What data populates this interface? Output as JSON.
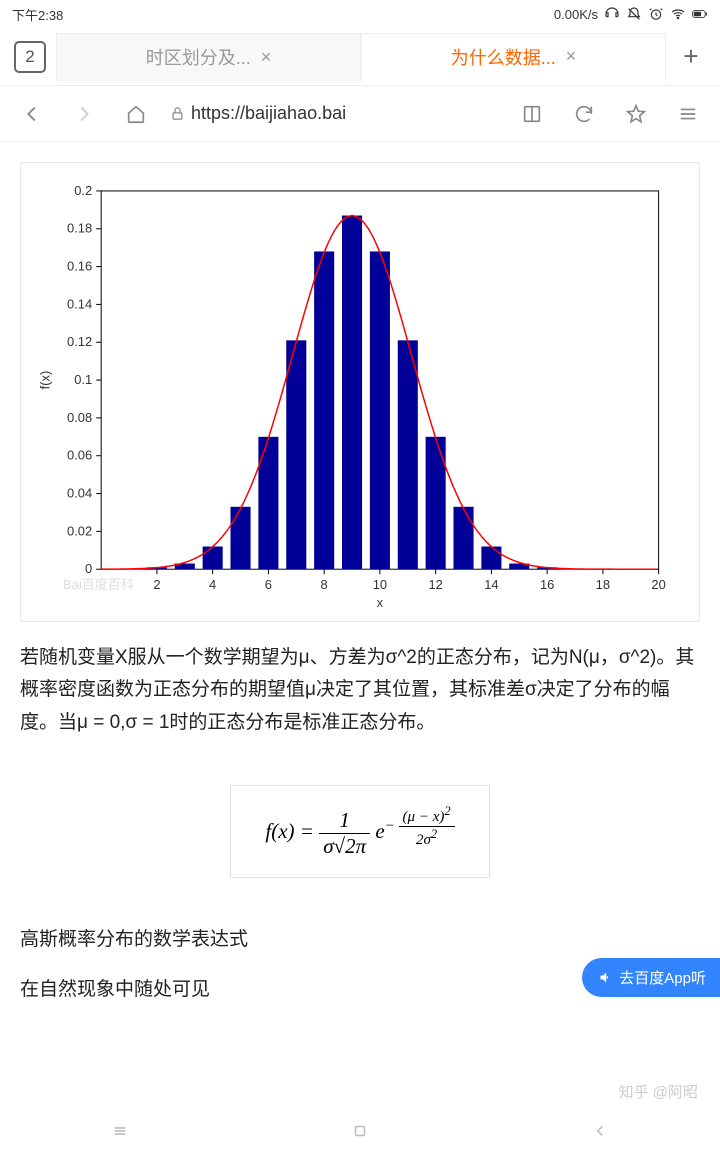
{
  "status": {
    "time": "下午2:38",
    "speed": "0.00K/s"
  },
  "tabs": {
    "count": "2",
    "inactive_label": "时区划分及...",
    "active_label": "为什么数据...",
    "close": "×",
    "new": "+"
  },
  "nav": {
    "url": "https://baijiahao.bai"
  },
  "chart": {
    "type": "bar+line",
    "xlabel": "x",
    "ylabel": "f(x)",
    "x_ticks": [
      2,
      4,
      6,
      8,
      10,
      12,
      14,
      16,
      18,
      20
    ],
    "y_ticks": [
      0,
      0.02,
      0.04,
      0.06,
      0.08,
      0.1,
      0.12,
      0.14,
      0.16,
      0.18,
      0.2
    ],
    "xlim": [
      0,
      20
    ],
    "ylim": [
      0,
      0.2
    ],
    "bars_x": [
      2,
      3,
      4,
      5,
      6,
      7,
      8,
      9,
      10,
      11,
      12,
      13,
      14,
      15,
      16
    ],
    "bars_y": [
      0.001,
      0.003,
      0.012,
      0.033,
      0.07,
      0.121,
      0.168,
      0.187,
      0.168,
      0.121,
      0.07,
      0.033,
      0.012,
      0.003,
      0.001
    ],
    "bar_color": "#000099",
    "line_color": "#ff0000",
    "axis_color": "#000000",
    "bar_width": 0.72,
    "watermark": "Bai百度百科"
  },
  "text": {
    "para1": "若随机变量X服从一个数学期望为μ、方差为σ^2的正态分布，记为N(μ，σ^2)。其概率密度函数为正态分布的期望值μ决定了其位置，其标准差σ决定了分布的幅度。当μ = 0,σ = 1时的正态分布是标准正态分布。",
    "caption": "高斯概率分布的数学表达式",
    "para2": "在自然现象中随处可见"
  },
  "formula": {
    "lhs": "f(x) = ",
    "frac1_num": "1",
    "frac1_den": "σ√2π",
    "mid": "e",
    "exp_sign": "−",
    "frac2_num": "(μ − x)",
    "frac2_num_sup": "2",
    "frac2_den": "2σ",
    "frac2_den_sup": "2"
  },
  "floating_btn": "去百度App听",
  "watermark": "知乎 @阿昭"
}
